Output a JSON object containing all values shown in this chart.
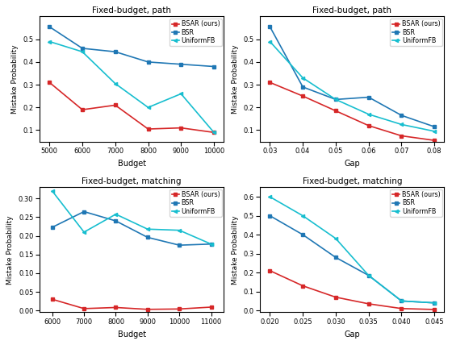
{
  "top_left": {
    "title": "Fixed-budget, path",
    "xlabel": "Budget",
    "ylabel": "Mistake Probability",
    "x": [
      5000,
      6000,
      7000,
      8000,
      9000,
      10000
    ],
    "bsar": [
      0.31,
      0.19,
      0.21,
      0.105,
      0.11,
      0.09
    ],
    "bsr": [
      0.555,
      0.46,
      0.445,
      0.4,
      0.39,
      0.38
    ],
    "uniformfb": [
      0.49,
      0.445,
      0.305,
      0.2,
      0.26,
      0.09
    ],
    "xticks": [
      5000,
      6000,
      7000,
      8000,
      9000,
      10000
    ],
    "xlim": [
      4700,
      10300
    ],
    "ylim": [
      0.05,
      0.6
    ],
    "yticks": [
      0.1,
      0.2,
      0.3,
      0.4,
      0.5
    ]
  },
  "top_right": {
    "title": "Fixed-budget, path",
    "xlabel": "Gap",
    "ylabel": "Mistake Probability",
    "x": [
      0.03,
      0.04,
      0.05,
      0.06,
      0.07,
      0.08
    ],
    "bsar": [
      0.31,
      0.25,
      0.185,
      0.12,
      0.075,
      0.055
    ],
    "bsr": [
      0.555,
      0.29,
      0.235,
      0.245,
      0.165,
      0.115
    ],
    "uniformfb": [
      0.49,
      0.33,
      0.235,
      0.17,
      0.125,
      0.095
    ],
    "xticks": [
      0.03,
      0.04,
      0.05,
      0.06,
      0.07,
      0.08
    ],
    "xlim": [
      0.027,
      0.083
    ],
    "ylim": [
      0.05,
      0.6
    ],
    "yticks": [
      0.1,
      0.2,
      0.3,
      0.4,
      0.5
    ]
  },
  "bottom_left": {
    "title": "Fixed-budget, matching",
    "xlabel": "Budget",
    "ylabel": "Mistake Probability",
    "x": [
      6000,
      7000,
      8000,
      9000,
      10000,
      11000
    ],
    "bsar": [
      0.03,
      0.005,
      0.008,
      0.003,
      0.004,
      0.009
    ],
    "bsr": [
      0.223,
      0.265,
      0.24,
      0.196,
      0.175,
      0.178
    ],
    "uniformfb": [
      0.32,
      0.21,
      0.258,
      0.218,
      0.215,
      0.178
    ],
    "xticks": [
      6000,
      7000,
      8000,
      9000,
      10000,
      11000
    ],
    "xlim": [
      5600,
      11400
    ],
    "ylim": [
      -0.005,
      0.33
    ],
    "yticks": [
      0.0,
      0.05,
      0.1,
      0.15,
      0.2,
      0.25,
      0.3
    ]
  },
  "bottom_right": {
    "title": "Fixed-budget, matching",
    "xlabel": "Gap",
    "ylabel": "Mistake Probability",
    "x": [
      0.02,
      0.025,
      0.03,
      0.035,
      0.04,
      0.045
    ],
    "bsar": [
      0.21,
      0.13,
      0.07,
      0.035,
      0.01,
      0.005
    ],
    "bsr": [
      0.5,
      0.4,
      0.28,
      0.185,
      0.05,
      0.04
    ],
    "uniformfb": [
      0.6,
      0.5,
      0.38,
      0.185,
      0.05,
      0.04
    ],
    "xticks": [
      0.02,
      0.025,
      0.03,
      0.035,
      0.04,
      0.045
    ],
    "xlim": [
      0.0185,
      0.0465
    ],
    "ylim": [
      -0.01,
      0.65
    ],
    "yticks": [
      0.0,
      0.1,
      0.2,
      0.3,
      0.4,
      0.5,
      0.6
    ]
  },
  "colors": {
    "bsar": "#d62728",
    "bsr": "#1f77b4",
    "uniformfb": "#17becf"
  }
}
